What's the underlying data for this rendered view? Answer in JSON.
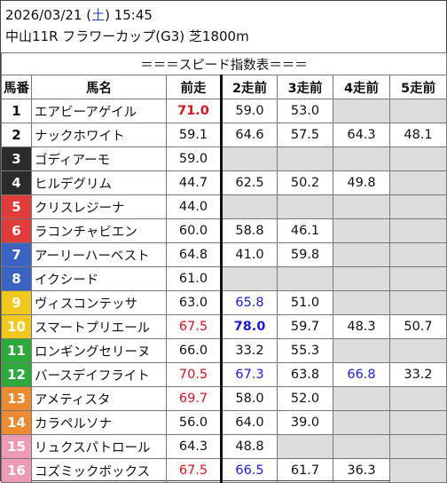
{
  "header": {
    "date_prefix": "2026/03/21 (",
    "weekday": "土",
    "date_suffix": ") 15:45",
    "race_line": "中山11R フラワーカップ(G3) 芝1800m"
  },
  "table": {
    "title": "＝＝＝スピード指数表＝＝＝",
    "columns": [
      "馬番",
      "馬名",
      "前走",
      "2走前",
      "3走前",
      "4走前",
      "5走前"
    ],
    "rows": [
      {
        "num": "1",
        "name": "エアビーアゲイル",
        "bg": "#ffffff",
        "fg": "#111111",
        "v": [
          "71.0",
          "59.0",
          "53.0",
          "",
          ""
        ],
        "s": [
          "red-b",
          "",
          "",
          "",
          ""
        ]
      },
      {
        "num": "2",
        "name": "ナックホワイト",
        "bg": "#ffffff",
        "fg": "#111111",
        "v": [
          "59.1",
          "64.6",
          "57.5",
          "64.3",
          "48.1"
        ],
        "s": [
          "",
          "",
          "",
          "",
          ""
        ]
      },
      {
        "num": "3",
        "name": "ゴディアーモ",
        "bg": "#2b2b2b",
        "fg": "#ffffff",
        "v": [
          "59.0",
          "",
          "",
          "",
          ""
        ],
        "s": [
          "",
          "",
          "",
          "",
          ""
        ]
      },
      {
        "num": "4",
        "name": "ヒルデグリム",
        "bg": "#2b2b2b",
        "fg": "#ffffff",
        "v": [
          "44.7",
          "62.5",
          "50.2",
          "49.8",
          ""
        ],
        "s": [
          "",
          "",
          "",
          "",
          ""
        ]
      },
      {
        "num": "5",
        "name": "クリスレジーナ",
        "bg": "#e03c3c",
        "fg": "#ffffff",
        "v": [
          "44.0",
          "",
          "",
          "",
          ""
        ],
        "s": [
          "",
          "",
          "",
          "",
          ""
        ]
      },
      {
        "num": "6",
        "name": "ラコンチャビエン",
        "bg": "#e03c3c",
        "fg": "#ffffff",
        "v": [
          "60.0",
          "58.8",
          "46.1",
          "",
          ""
        ],
        "s": [
          "",
          "",
          "",
          "",
          ""
        ]
      },
      {
        "num": "7",
        "name": "アーリーハーベスト",
        "bg": "#3b63c4",
        "fg": "#ffffff",
        "v": [
          "64.8",
          "41.0",
          "59.8",
          "",
          ""
        ],
        "s": [
          "",
          "",
          "",
          "",
          ""
        ]
      },
      {
        "num": "8",
        "name": "イクシード",
        "bg": "#3b63c4",
        "fg": "#ffffff",
        "v": [
          "61.0",
          "",
          "",
          "",
          ""
        ],
        "s": [
          "",
          "",
          "",
          "",
          ""
        ]
      },
      {
        "num": "9",
        "name": "ヴィスコンテッサ",
        "bg": "#f0c81e",
        "fg": "#ffffff",
        "v": [
          "63.0",
          "65.8",
          "51.0",
          "",
          ""
        ],
        "s": [
          "",
          "blue",
          "",
          "",
          ""
        ]
      },
      {
        "num": "10",
        "name": "スマートプリエール",
        "bg": "#f0c81e",
        "fg": "#ffffff",
        "v": [
          "67.5",
          "78.0",
          "59.7",
          "48.3",
          "50.7"
        ],
        "s": [
          "red",
          "blue-b",
          "",
          "",
          ""
        ]
      },
      {
        "num": "11",
        "name": "ロンギングセリーヌ",
        "bg": "#2eaa3c",
        "fg": "#ffffff",
        "v": [
          "66.0",
          "33.2",
          "55.3",
          "",
          ""
        ],
        "s": [
          "",
          "",
          "",
          "",
          ""
        ]
      },
      {
        "num": "12",
        "name": "バースデイフライト",
        "bg": "#2eaa3c",
        "fg": "#ffffff",
        "v": [
          "70.5",
          "67.3",
          "63.8",
          "66.8",
          "33.2"
        ],
        "s": [
          "red",
          "blue",
          "",
          "blue",
          ""
        ]
      },
      {
        "num": "13",
        "name": "アメティスタ",
        "bg": "#ec8a32",
        "fg": "#ffffff",
        "v": [
          "69.7",
          "58.0",
          "52.0",
          "",
          ""
        ],
        "s": [
          "red",
          "",
          "",
          "",
          ""
        ]
      },
      {
        "num": "14",
        "name": "カラペルソナ",
        "bg": "#ec8a32",
        "fg": "#ffffff",
        "v": [
          "56.0",
          "64.0",
          "39.0",
          "",
          ""
        ],
        "s": [
          "",
          "",
          "",
          "",
          ""
        ]
      },
      {
        "num": "15",
        "name": "リュクスパトロール",
        "bg": "#ef9ab4",
        "fg": "#ffffff",
        "v": [
          "64.3",
          "48.8",
          "",
          "",
          ""
        ],
        "s": [
          "",
          "",
          "",
          "",
          ""
        ]
      },
      {
        "num": "16",
        "name": "コズミックボックス",
        "bg": "#ef9ab4",
        "fg": "#ffffff",
        "v": [
          "67.5",
          "66.5",
          "61.7",
          "36.3",
          ""
        ],
        "s": [
          "red",
          "blue",
          "",
          "",
          ""
        ]
      }
    ]
  }
}
